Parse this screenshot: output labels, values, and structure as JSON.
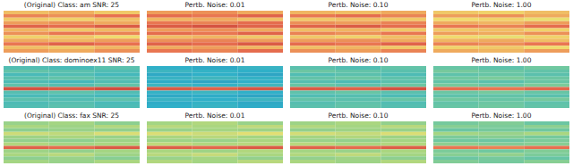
{
  "chart_data": [
    {
      "type": "heatmap",
      "title": "(Original) Class: am SNR: 25",
      "tick_labels": false,
      "color_range": [
        0,
        1
      ],
      "cells": [
        [
          0.72,
          0.75,
          0.7
        ],
        [
          0.82,
          0.8,
          0.85
        ],
        [
          0.7,
          0.68,
          0.72
        ],
        [
          0.78,
          0.8,
          0.76
        ],
        [
          0.88,
          0.86,
          0.9
        ],
        [
          0.74,
          0.7,
          0.73
        ],
        [
          0.8,
          0.84,
          0.82
        ],
        [
          0.68,
          0.7,
          0.66
        ],
        [
          0.76,
          0.74,
          0.78
        ],
        [
          0.84,
          0.88,
          0.85
        ],
        [
          0.72,
          0.7,
          0.74
        ],
        [
          0.78,
          0.76,
          0.8
        ]
      ]
    },
    {
      "type": "heatmap",
      "title": "Pertb. Noise: 0.01",
      "tick_labels": false,
      "color_range": [
        0,
        1
      ],
      "cells": [
        [
          0.78,
          0.8,
          0.76
        ],
        [
          0.86,
          0.84,
          0.88
        ],
        [
          0.74,
          0.76,
          0.72
        ],
        [
          0.84,
          0.82,
          0.86
        ],
        [
          0.9,
          0.92,
          0.88
        ],
        [
          0.78,
          0.8,
          0.76
        ],
        [
          0.86,
          0.84,
          0.88
        ],
        [
          0.72,
          0.74,
          0.7
        ],
        [
          0.8,
          0.82,
          0.78
        ],
        [
          0.88,
          0.86,
          0.9
        ],
        [
          0.76,
          0.78,
          0.74
        ],
        [
          0.84,
          0.82,
          0.86
        ]
      ]
    },
    {
      "type": "heatmap",
      "title": "Pertb. Noise: 0.10",
      "tick_labels": false,
      "color_range": [
        0,
        1
      ],
      "cells": [
        [
          0.74,
          0.72,
          0.76
        ],
        [
          0.84,
          0.86,
          0.82
        ],
        [
          0.7,
          0.72,
          0.7
        ],
        [
          0.8,
          0.78,
          0.82
        ],
        [
          0.88,
          0.9,
          0.86
        ],
        [
          0.72,
          0.74,
          0.7
        ],
        [
          0.82,
          0.8,
          0.84
        ],
        [
          0.7,
          0.68,
          0.72
        ],
        [
          0.78,
          0.8,
          0.76
        ],
        [
          0.86,
          0.84,
          0.88
        ],
        [
          0.72,
          0.74,
          0.7
        ],
        [
          0.8,
          0.78,
          0.82
        ]
      ]
    },
    {
      "type": "heatmap",
      "title": "Pertb. Noise: 1.00",
      "tick_labels": false,
      "color_range": [
        0,
        1
      ],
      "cells": [
        [
          0.7,
          0.68,
          0.72
        ],
        [
          0.78,
          0.8,
          0.76
        ],
        [
          0.66,
          0.68,
          0.64
        ],
        [
          0.76,
          0.74,
          0.78
        ],
        [
          0.84,
          0.82,
          0.86
        ],
        [
          0.7,
          0.72,
          0.68
        ],
        [
          0.78,
          0.76,
          0.8
        ],
        [
          0.66,
          0.64,
          0.68
        ],
        [
          0.74,
          0.76,
          0.72
        ],
        [
          0.82,
          0.8,
          0.84
        ],
        [
          0.68,
          0.7,
          0.66
        ],
        [
          0.76,
          0.74,
          0.78
        ]
      ]
    },
    {
      "type": "heatmap",
      "title": "(Original) Class: dominoex11 SNR: 25",
      "tick_labels": false,
      "color_range": [
        0,
        1
      ],
      "cells": [
        [
          0.38,
          0.36,
          0.4
        ],
        [
          0.42,
          0.4,
          0.38
        ],
        [
          0.36,
          0.38,
          0.35
        ],
        [
          0.4,
          0.42,
          0.39
        ],
        [
          0.37,
          0.35,
          0.38
        ],
        [
          0.41,
          0.39,
          0.42
        ],
        [
          0.92,
          0.9,
          0.93
        ],
        [
          0.39,
          0.41,
          0.38
        ],
        [
          0.36,
          0.37,
          0.35
        ],
        [
          0.4,
          0.38,
          0.41
        ],
        [
          0.37,
          0.39,
          0.36
        ],
        [
          0.38,
          0.4,
          0.37
        ]
      ]
    },
    {
      "type": "heatmap",
      "title": "Pertb. Noise: 0.01",
      "tick_labels": false,
      "color_range": [
        0,
        1
      ],
      "cells": [
        [
          0.3,
          0.28,
          0.32
        ],
        [
          0.33,
          0.31,
          0.3
        ],
        [
          0.28,
          0.3,
          0.27
        ],
        [
          0.32,
          0.34,
          0.31
        ],
        [
          0.29,
          0.27,
          0.3
        ],
        [
          0.33,
          0.31,
          0.34
        ],
        [
          0.9,
          0.88,
          0.91
        ],
        [
          0.31,
          0.33,
          0.3
        ],
        [
          0.28,
          0.29,
          0.27
        ],
        [
          0.32,
          0.3,
          0.33
        ],
        [
          0.29,
          0.31,
          0.28
        ],
        [
          0.3,
          0.32,
          0.29
        ]
      ]
    },
    {
      "type": "heatmap",
      "title": "Pertb. Noise: 0.10",
      "tick_labels": false,
      "color_range": [
        0,
        1
      ],
      "cells": [
        [
          0.4,
          0.38,
          0.42
        ],
        [
          0.44,
          0.42,
          0.4
        ],
        [
          0.38,
          0.4,
          0.37
        ],
        [
          0.42,
          0.44,
          0.41
        ],
        [
          0.39,
          0.37,
          0.4
        ],
        [
          0.43,
          0.41,
          0.44
        ],
        [
          0.9,
          0.88,
          0.92
        ],
        [
          0.41,
          0.43,
          0.4
        ],
        [
          0.38,
          0.39,
          0.37
        ],
        [
          0.42,
          0.4,
          0.43
        ],
        [
          0.39,
          0.41,
          0.38
        ],
        [
          0.4,
          0.42,
          0.39
        ]
      ]
    },
    {
      "type": "heatmap",
      "title": "Pertb. Noise: 1.00",
      "tick_labels": false,
      "color_range": [
        0,
        1
      ],
      "cells": [
        [
          0.43,
          0.41,
          0.45
        ],
        [
          0.46,
          0.44,
          0.42
        ],
        [
          0.41,
          0.43,
          0.4
        ],
        [
          0.45,
          0.47,
          0.44
        ],
        [
          0.42,
          0.4,
          0.43
        ],
        [
          0.46,
          0.44,
          0.47
        ],
        [
          0.86,
          0.84,
          0.87
        ],
        [
          0.44,
          0.46,
          0.43
        ],
        [
          0.41,
          0.42,
          0.4
        ],
        [
          0.45,
          0.43,
          0.46
        ],
        [
          0.42,
          0.44,
          0.41
        ],
        [
          0.43,
          0.45,
          0.42
        ]
      ]
    },
    {
      "type": "heatmap",
      "title": "(Original) Class: fax SNR: 25",
      "tick_labels": false,
      "color_range": [
        0,
        1
      ],
      "cells": [
        [
          0.52,
          0.54,
          0.5
        ],
        [
          0.55,
          0.53,
          0.56
        ],
        [
          0.5,
          0.52,
          0.51
        ],
        [
          0.6,
          0.58,
          0.62
        ],
        [
          0.53,
          0.55,
          0.52
        ],
        [
          0.51,
          0.5,
          0.53
        ],
        [
          0.56,
          0.54,
          0.55
        ],
        [
          0.88,
          0.86,
          0.9
        ],
        [
          0.53,
          0.51,
          0.54
        ],
        [
          0.55,
          0.57,
          0.53
        ],
        [
          0.5,
          0.52,
          0.49
        ],
        [
          0.54,
          0.52,
          0.55
        ]
      ]
    },
    {
      "type": "heatmap",
      "title": "Pertb. Noise: 0.01",
      "tick_labels": false,
      "color_range": [
        0,
        1
      ],
      "cells": [
        [
          0.54,
          0.56,
          0.52
        ],
        [
          0.57,
          0.55,
          0.58
        ],
        [
          0.52,
          0.54,
          0.53
        ],
        [
          0.62,
          0.6,
          0.63
        ],
        [
          0.55,
          0.57,
          0.54
        ],
        [
          0.53,
          0.52,
          0.55
        ],
        [
          0.58,
          0.56,
          0.57
        ],
        [
          0.89,
          0.87,
          0.9
        ],
        [
          0.55,
          0.53,
          0.56
        ],
        [
          0.57,
          0.59,
          0.55
        ],
        [
          0.52,
          0.54,
          0.51
        ],
        [
          0.56,
          0.54,
          0.57
        ]
      ]
    },
    {
      "type": "heatmap",
      "title": "Pertb. Noise: 0.10",
      "tick_labels": false,
      "color_range": [
        0,
        1
      ],
      "cells": [
        [
          0.53,
          0.55,
          0.51
        ],
        [
          0.56,
          0.54,
          0.57
        ],
        [
          0.51,
          0.53,
          0.52
        ],
        [
          0.61,
          0.59,
          0.62
        ],
        [
          0.54,
          0.56,
          0.53
        ],
        [
          0.52,
          0.51,
          0.54
        ],
        [
          0.57,
          0.55,
          0.56
        ],
        [
          0.88,
          0.86,
          0.89
        ],
        [
          0.54,
          0.52,
          0.55
        ],
        [
          0.56,
          0.58,
          0.54
        ],
        [
          0.51,
          0.53,
          0.5
        ],
        [
          0.55,
          0.53,
          0.56
        ]
      ]
    },
    {
      "type": "heatmap",
      "title": "Pertb. Noise: 1.00",
      "tick_labels": false,
      "color_range": [
        0,
        1
      ],
      "cells": [
        [
          0.46,
          0.48,
          0.44
        ],
        [
          0.49,
          0.47,
          0.5
        ],
        [
          0.44,
          0.46,
          0.45
        ],
        [
          0.54,
          0.52,
          0.55
        ],
        [
          0.47,
          0.49,
          0.46
        ],
        [
          0.45,
          0.44,
          0.47
        ],
        [
          0.5,
          0.48,
          0.49
        ],
        [
          0.84,
          0.82,
          0.85
        ],
        [
          0.47,
          0.45,
          0.48
        ],
        [
          0.49,
          0.51,
          0.47
        ],
        [
          0.44,
          0.46,
          0.43
        ],
        [
          0.48,
          0.46,
          0.49
        ]
      ]
    }
  ]
}
